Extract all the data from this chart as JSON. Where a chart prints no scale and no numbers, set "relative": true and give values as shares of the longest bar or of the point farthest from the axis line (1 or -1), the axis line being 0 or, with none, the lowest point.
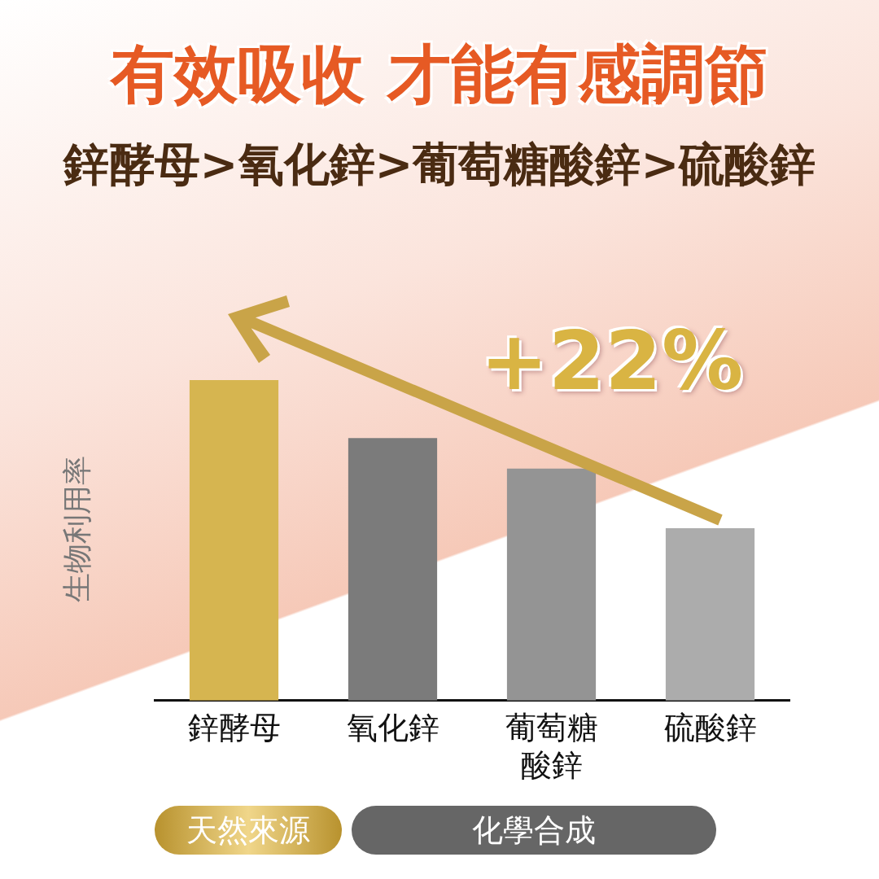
{
  "chart_data": {
    "type": "bar",
    "title": "有效吸收 才能有感調節",
    "subtitle": "鋅酵母>氧化鋅>葡萄糖酸鋅>硫酸鋅",
    "ylabel": "生物利用率",
    "categories": [
      "鋅酵母",
      "氧化鋅",
      "葡萄糖酸鋅",
      "硫酸鋅"
    ],
    "values": [
      1,
      0.819,
      0.724,
      0.538
    ],
    "colors": [
      "#d6b550",
      "#7b7b7b",
      "#949494",
      "#acacac"
    ],
    "relative": true,
    "annotations": [
      "+22%",
      "天然來源",
      "化學合成"
    ]
  }
}
